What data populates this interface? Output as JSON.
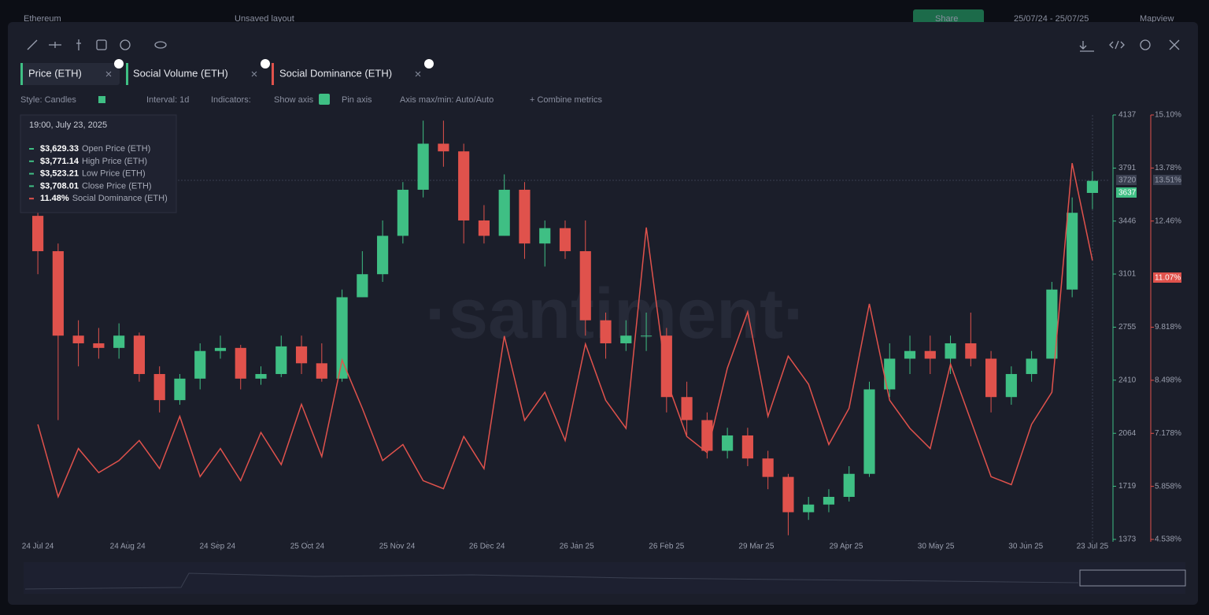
{
  "ui": {
    "topbar": {
      "asset": "Ethereum",
      "layout": "Unsaved layout",
      "share": "Share",
      "range": "25/07/24 - 25/07/25",
      "mapview": "Mapview"
    },
    "tabs": [
      "Social Volume (ETH)"
    ],
    "options": [
      "Style: Candles",
      "Interval: 1d",
      "Indicators:",
      "Show axis",
      "Pin axis",
      "Axis max/min: Auto/Auto",
      "+ Combine metrics"
    ],
    "watermark": "·santiment·",
    "tags": [
      "3720",
      "3637",
      "13.51%",
      "11.07%"
    ],
    "tooltip": {
      "time": "19:00, July 23, 2025",
      "items": [
        {
          "value": "$3,629.33",
          "label": "Open Price (ETH)",
          "color": "#3fbf84"
        },
        {
          "value": "$3,771.14",
          "label": "High Price (ETH)",
          "color": "#3fbf84"
        },
        {
          "value": "$3,523.21",
          "label": "Low Price (ETH)",
          "color": "#3fbf84"
        },
        {
          "value": "$3,708.01",
          "label": "Close Price (ETH)",
          "color": "#3fbf84"
        },
        {
          "value": "11.48%",
          "label": "Social Dominance (ETH)",
          "color": "#e0524c"
        }
      ]
    }
  },
  "chart_data": {
    "type": "candlestick",
    "x": [
      "2024-07-24",
      "2024-07-31",
      "2024-08-07",
      "2024-08-14",
      "2024-08-21",
      "2024-08-28",
      "2024-09-04",
      "2024-09-11",
      "2024-09-18",
      "2024-09-25",
      "2024-10-02",
      "2024-10-09",
      "2024-10-16",
      "2024-10-23",
      "2024-10-30",
      "2024-11-06",
      "2024-11-13",
      "2024-11-20",
      "2024-11-27",
      "2024-12-04",
      "2024-12-11",
      "2024-12-18",
      "2024-12-25",
      "2025-01-01",
      "2025-01-08",
      "2025-01-15",
      "2025-01-22",
      "2025-01-29",
      "2025-02-05",
      "2025-02-12",
      "2025-02-19",
      "2025-02-26",
      "2025-03-05",
      "2025-03-12",
      "2025-03-19",
      "2025-03-26",
      "2025-04-02",
      "2025-04-09",
      "2025-04-16",
      "2025-04-23",
      "2025-04-30",
      "2025-05-07",
      "2025-05-14",
      "2025-05-21",
      "2025-05-28",
      "2025-06-04",
      "2025-06-11",
      "2025-06-18",
      "2025-06-25",
      "2025-07-02",
      "2025-07-09",
      "2025-07-16",
      "2025-07-23"
    ],
    "series": [
      {
        "name": "Price (ETH)",
        "type": "candlestick",
        "color_up": "#3fbf84",
        "color_down": "#e0524c",
        "open": [
          3480,
          3250,
          2700,
          2650,
          2620,
          2700,
          2450,
          2280,
          2420,
          2600,
          2620,
          2420,
          2450,
          2630,
          2520,
          2420,
          2950,
          3100,
          3350,
          3650,
          3950,
          3900,
          3450,
          3350,
          3650,
          3300,
          3400,
          3250,
          2800,
          2650,
          2700,
          2700,
          2300,
          2150,
          1950,
          2050,
          1900,
          1780,
          1550,
          1600,
          1650,
          1800,
          2350,
          2550,
          2600,
          2550,
          2650,
          2550,
          2300,
          2450,
          2550,
          3000,
          3629.33
        ],
        "high": [
          3560,
          3300,
          2800,
          2750,
          2780,
          2720,
          2500,
          2450,
          2650,
          2700,
          2640,
          2500,
          2700,
          2700,
          2650,
          3000,
          3250,
          3450,
          3700,
          4100,
          4100,
          3950,
          3550,
          3750,
          3700,
          3450,
          3450,
          3450,
          2850,
          2800,
          2850,
          2750,
          2400,
          2200,
          2100,
          2100,
          1950,
          1800,
          1650,
          1700,
          1850,
          2400,
          2650,
          2700,
          2700,
          2700,
          2850,
          2600,
          2500,
          2600,
          3050,
          3600,
          3771.14
        ],
        "low": [
          3100,
          2150,
          2500,
          2550,
          2550,
          2400,
          2200,
          2250,
          2350,
          2550,
          2350,
          2380,
          2430,
          2450,
          2400,
          2400,
          2950,
          3050,
          3300,
          3600,
          3800,
          3300,
          3300,
          3350,
          3200,
          3150,
          3200,
          2700,
          2550,
          2600,
          2600,
          2200,
          2050,
          1900,
          1900,
          1850,
          1700,
          1400,
          1500,
          1550,
          1620,
          1780,
          2300,
          2450,
          2450,
          2450,
          2500,
          2200,
          2250,
          2400,
          2550,
          2950,
          3523.21
        ],
        "close": [
          3250,
          2700,
          2650,
          2620,
          2700,
          2450,
          2280,
          2420,
          2600,
          2620,
          2420,
          2450,
          2630,
          2520,
          2420,
          2950,
          3100,
          3350,
          3650,
          3950,
          3900,
          3450,
          3350,
          3650,
          3300,
          3400,
          3250,
          2800,
          2650,
          2700,
          2700,
          2300,
          2150,
          1950,
          2050,
          1900,
          1780,
          1550,
          1600,
          1650,
          1800,
          2350,
          2550,
          2600,
          2550,
          2650,
          2550,
          2300,
          2450,
          2550,
          3000,
          3500,
          3708.01
        ]
      },
      {
        "name": "Social Dominance (ETH)",
        "type": "line",
        "axis": "y2",
        "color": "#e0524c",
        "values": [
          7.4,
          5.6,
          6.8,
          6.2,
          6.5,
          7.0,
          6.3,
          7.6,
          6.1,
          6.8,
          6.0,
          7.2,
          6.4,
          7.9,
          6.6,
          9.0,
          7.8,
          6.5,
          6.9,
          6.0,
          5.8,
          7.1,
          6.3,
          9.6,
          7.5,
          8.2,
          7.0,
          9.4,
          8.0,
          7.3,
          12.3,
          8.5,
          7.1,
          6.7,
          8.8,
          10.2,
          7.6,
          9.1,
          8.4,
          6.9,
          7.8,
          10.4,
          8.0,
          7.3,
          6.8,
          8.9,
          7.5,
          6.1,
          5.9,
          7.4,
          8.2,
          13.9,
          11.48
        ]
      }
    ],
    "xlim": [
      "2024-07-18",
      "2025-07-29"
    ],
    "xticks": [
      {
        "value": "2024-07-24",
        "label": "24 Jul 24"
      },
      {
        "value": "2024-08-24",
        "label": "24 Aug 24"
      },
      {
        "value": "2024-09-24",
        "label": "24 Sep 24"
      },
      {
        "value": "2024-10-25",
        "label": "25 Oct 24"
      },
      {
        "value": "2024-11-25",
        "label": "25 Nov 24"
      },
      {
        "value": "2024-12-26",
        "label": "26 Dec 24"
      },
      {
        "value": "2025-01-26",
        "label": "26 Jan 25"
      },
      {
        "value": "2025-02-26",
        "label": "26 Feb 25"
      },
      {
        "value": "2025-03-29",
        "label": "29 Mar 25"
      },
      {
        "value": "2025-04-29",
        "label": "29 Apr 25"
      },
      {
        "value": "2025-05-30",
        "label": "30 May 25"
      },
      {
        "value": "2025-06-30",
        "label": "30 Jun 25"
      },
      {
        "value": "2025-07-23",
        "label": "23 Jul 25"
      }
    ],
    "ylim": [
      1373,
      4137
    ],
    "yticks": [
      1373,
      1719,
      2064,
      2410,
      2755,
      3101,
      3446,
      3791,
      4137
    ],
    "y2lim": [
      4.538,
      15.1
    ],
    "y2ticks": [
      {
        "value": 4.538,
        "label": "4.538%"
      },
      {
        "value": 5.858,
        "label": "5.858%"
      },
      {
        "value": 7.178,
        "label": "7.178%"
      },
      {
        "value": 8.498,
        "label": "8.498%"
      },
      {
        "value": 9.818,
        "label": "9.818%"
      },
      {
        "value": 12.46,
        "label": "12.46%"
      },
      {
        "value": 13.78,
        "label": "13.78%"
      },
      {
        "value": 15.1,
        "label": "15.10%"
      }
    ]
  }
}
